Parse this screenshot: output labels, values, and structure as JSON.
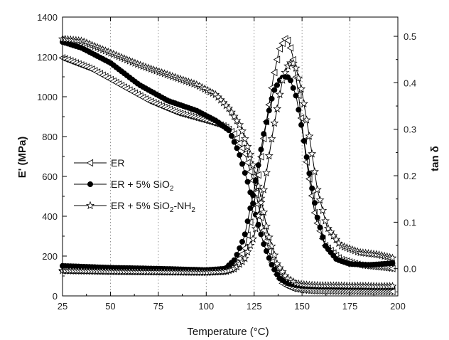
{
  "chart_data": {
    "type": "line",
    "xlabel": "Temperature (°C)",
    "ylabel_left": "E' (MPa)",
    "ylabel_right": "tan δ",
    "xlim": [
      25,
      200
    ],
    "ylim_left": [
      0,
      1400
    ],
    "ylim_right": [
      -0.0586,
      0.5414
    ],
    "x_ticks": [
      25,
      50,
      75,
      100,
      125,
      150,
      175,
      200
    ],
    "y_left_ticks": [
      0,
      200,
      400,
      600,
      800,
      1000,
      1200,
      1400
    ],
    "y_right_ticks": [
      0.0,
      0.1,
      0.2,
      0.3,
      0.4,
      0.5
    ],
    "grid": "vertical dotted",
    "legend_position": "left-middle",
    "legend": [
      {
        "key": "er",
        "label": "ER",
        "marker": "triangle-left-open"
      },
      {
        "key": "sio2",
        "label": "ER + 5% SiO",
        "sub": "2",
        "label_after": "",
        "marker": "circle-filled"
      },
      {
        "key": "nh2",
        "label": "ER + 5% SiO",
        "sub": "2",
        "label_after": "-NH",
        "sub2": "2",
        "marker": "star-open"
      }
    ],
    "series": [
      {
        "name": "ER",
        "axis": "left",
        "marker": "triangle-left-open",
        "x": [
          25,
          40,
          55,
          70,
          85,
          100,
          110,
          115,
          120,
          125,
          130,
          135,
          140,
          145,
          150,
          155,
          165,
          175,
          185,
          198
        ],
        "y": [
          1195,
          1140,
          1060,
          980,
          920,
          880,
          850,
          810,
          720,
          560,
          330,
          140,
          60,
          38,
          30,
          26,
          24,
          23,
          22,
          22
        ]
      },
      {
        "name": "ER + 5% SiO2",
        "axis": "left",
        "marker": "circle-filled",
        "x": [
          25,
          35,
          50,
          65,
          80,
          95,
          105,
          112,
          117,
          122,
          126,
          130,
          134,
          138,
          142,
          146,
          150,
          160,
          175,
          190,
          198
        ],
        "y": [
          1275,
          1245,
          1170,
          1060,
          980,
          930,
          880,
          830,
          720,
          560,
          400,
          260,
          160,
          90,
          65,
          55,
          50,
          47,
          45,
          44,
          44
        ]
      },
      {
        "name": "ER + 5% SiO2-NH2",
        "axis": "left",
        "marker": "star-open",
        "x": [
          25,
          35,
          50,
          65,
          80,
          95,
          105,
          112,
          118,
          123,
          128,
          132,
          137,
          142,
          147,
          152,
          160,
          175,
          190,
          198
        ],
        "y": [
          1290,
          1280,
          1220,
          1160,
          1110,
          1060,
          1010,
          940,
          850,
          710,
          520,
          320,
          160,
          90,
          62,
          55,
          52,
          50,
          48,
          48
        ]
      },
      {
        "name": "ER",
        "axis": "right",
        "marker": "triangle-left-open",
        "x": [
          25,
          50,
          75,
          100,
          110,
          115,
          120,
          125,
          130,
          135,
          138,
          141,
          143,
          145,
          148,
          152,
          157,
          162,
          170,
          180,
          198
        ],
        "y": [
          -0.004,
          -0.005,
          -0.006,
          -0.007,
          -0.005,
          0.005,
          0.04,
          0.14,
          0.28,
          0.41,
          0.47,
          0.495,
          0.49,
          0.46,
          0.38,
          0.24,
          0.11,
          0.05,
          0.02,
          0.008,
          0.0
        ]
      },
      {
        "name": "ER + 5% SiO2",
        "axis": "right",
        "marker": "circle-filled",
        "x": [
          25,
          50,
          75,
          100,
          110,
          115,
          120,
          125,
          130,
          135,
          139,
          142,
          144,
          147,
          150,
          154,
          158,
          162,
          168,
          175,
          185,
          198
        ],
        "y": [
          0.006,
          0.002,
          0.0,
          -0.003,
          0.0,
          0.02,
          0.07,
          0.17,
          0.29,
          0.38,
          0.41,
          0.415,
          0.405,
          0.37,
          0.3,
          0.2,
          0.11,
          0.05,
          0.02,
          0.01,
          0.008,
          0.012
        ]
      },
      {
        "name": "ER + 5% SiO2-NH2",
        "axis": "right",
        "marker": "star-open",
        "x": [
          25,
          50,
          75,
          100,
          110,
          115,
          120,
          125,
          130,
          135,
          140,
          143,
          145,
          147,
          150,
          154,
          158,
          163,
          170,
          180,
          190,
          198
        ],
        "y": [
          -0.004,
          -0.006,
          -0.007,
          -0.008,
          -0.006,
          0.0,
          0.02,
          0.07,
          0.17,
          0.3,
          0.41,
          0.44,
          0.445,
          0.43,
          0.38,
          0.28,
          0.17,
          0.09,
          0.05,
          0.035,
          0.03,
          0.022
        ]
      }
    ]
  }
}
